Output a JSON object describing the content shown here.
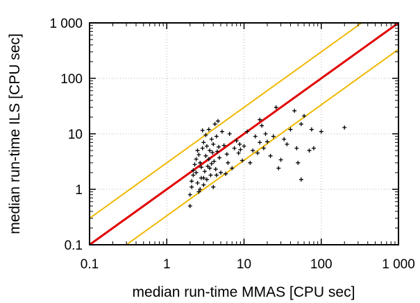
{
  "chart_data": {
    "type": "scatter",
    "title": "",
    "xlabel": "median run-time MMAS [CPU sec]",
    "ylabel": "median run-time ILS [CPU sec]",
    "xscale": "log",
    "yscale": "log",
    "xlim": [
      0.1,
      1000
    ],
    "ylim": [
      0.1,
      1000
    ],
    "x_ticks": [
      "0.1",
      "1",
      "10",
      "100",
      "1 000"
    ],
    "y_ticks": [
      "0.1",
      "1",
      "10",
      "100",
      "1 000"
    ],
    "grid": true,
    "legend": "none",
    "series": [
      {
        "marker": "plus",
        "color": "#000000",
        "points": [
          [
            2.0,
            0.5
          ],
          [
            2.0,
            0.8
          ],
          [
            2.1,
            1.1
          ],
          [
            2.1,
            1.4
          ],
          [
            2.2,
            1.8
          ],
          [
            2.2,
            2.2
          ],
          [
            2.3,
            2.8
          ],
          [
            2.4,
            3.5
          ],
          [
            2.4,
            2.0
          ],
          [
            2.5,
            1.3
          ],
          [
            2.6,
            0.9
          ],
          [
            2.6,
            4.2
          ],
          [
            2.7,
            3.0
          ],
          [
            2.8,
            1.6
          ],
          [
            2.8,
            2.5
          ],
          [
            2.9,
            11.5
          ],
          [
            2.9,
            5.5
          ],
          [
            3.0,
            1.2
          ],
          [
            3.0,
            7.0
          ],
          [
            3.1,
            2.1
          ],
          [
            3.2,
            4.0
          ],
          [
            3.2,
            9.5
          ],
          [
            3.3,
            1.5
          ],
          [
            3.3,
            6.0
          ],
          [
            3.4,
            2.6
          ],
          [
            3.5,
            12.0
          ],
          [
            3.5,
            3.5
          ],
          [
            3.6,
            5.0
          ],
          [
            3.7,
            1.8
          ],
          [
            3.8,
            8.0
          ],
          [
            3.8,
            2.9
          ],
          [
            3.9,
            4.6
          ],
          [
            4.0,
            1.1
          ],
          [
            4.0,
            6.5
          ],
          [
            4.1,
            3.2
          ],
          [
            4.2,
            15.0
          ],
          [
            4.3,
            2.3
          ],
          [
            4.4,
            9.0
          ],
          [
            4.5,
            4.8
          ],
          [
            4.6,
            17.0
          ],
          [
            4.7,
            5.8
          ],
          [
            4.8,
            3.7
          ],
          [
            5.0,
            2.0
          ],
          [
            5.2,
            11.0
          ],
          [
            5.5,
            6.2
          ],
          [
            5.8,
            1.9
          ],
          [
            6.0,
            4.3
          ],
          [
            6.5,
            10.0
          ],
          [
            7.0,
            2.4
          ],
          [
            7.5,
            5.5
          ],
          [
            8.0,
            7.5
          ],
          [
            8.5,
            4.5
          ],
          [
            9.0,
            5.2
          ],
          [
            9.5,
            3.3
          ],
          [
            10.0,
            6.0
          ],
          [
            11.0,
            11.0
          ],
          [
            12.0,
            3.0
          ],
          [
            13.0,
            5.0
          ],
          [
            14.0,
            9.0
          ],
          [
            15.0,
            4.5
          ],
          [
            16.0,
            7.0
          ],
          [
            17.0,
            14.0
          ],
          [
            18.0,
            5.5
          ],
          [
            19.0,
            10.0
          ],
          [
            20.0,
            7.2
          ],
          [
            22.0,
            4.0
          ],
          [
            24.0,
            9.0
          ],
          [
            26.0,
            30.0
          ],
          [
            28.0,
            2.4
          ],
          [
            30.0,
            3.4
          ],
          [
            33.0,
            8.0
          ],
          [
            36.0,
            6.5
          ],
          [
            40.0,
            12.0
          ],
          [
            45.0,
            26.0
          ],
          [
            48.0,
            5.5
          ],
          [
            50.0,
            3.0
          ],
          [
            55.0,
            15.0
          ],
          [
            55.0,
            1.5
          ],
          [
            60.0,
            21.0
          ],
          [
            70.0,
            5.0
          ],
          [
            75.0,
            12.0
          ],
          [
            80.0,
            5.5
          ],
          [
            100.0,
            11.0
          ],
          [
            200.0,
            13.0
          ],
          [
            3.0,
            1.6
          ],
          [
            2.7,
            1.0
          ],
          [
            3.6,
            2.4
          ],
          [
            6.2,
            3.0
          ],
          [
            8.8,
            6.5
          ],
          [
            16.0,
            18.0
          ],
          [
            2.5,
            5.0
          ],
          [
            4.4,
            1.8
          ]
        ]
      }
    ],
    "reference_lines": [
      {
        "name": "y = x",
        "color": "#e00000",
        "factor": 1
      },
      {
        "name": "y = 3x",
        "color": "#f0b800",
        "factor": 3
      },
      {
        "name": "y = x/3",
        "color": "#f0b800",
        "factor": 0.3333
      }
    ]
  }
}
